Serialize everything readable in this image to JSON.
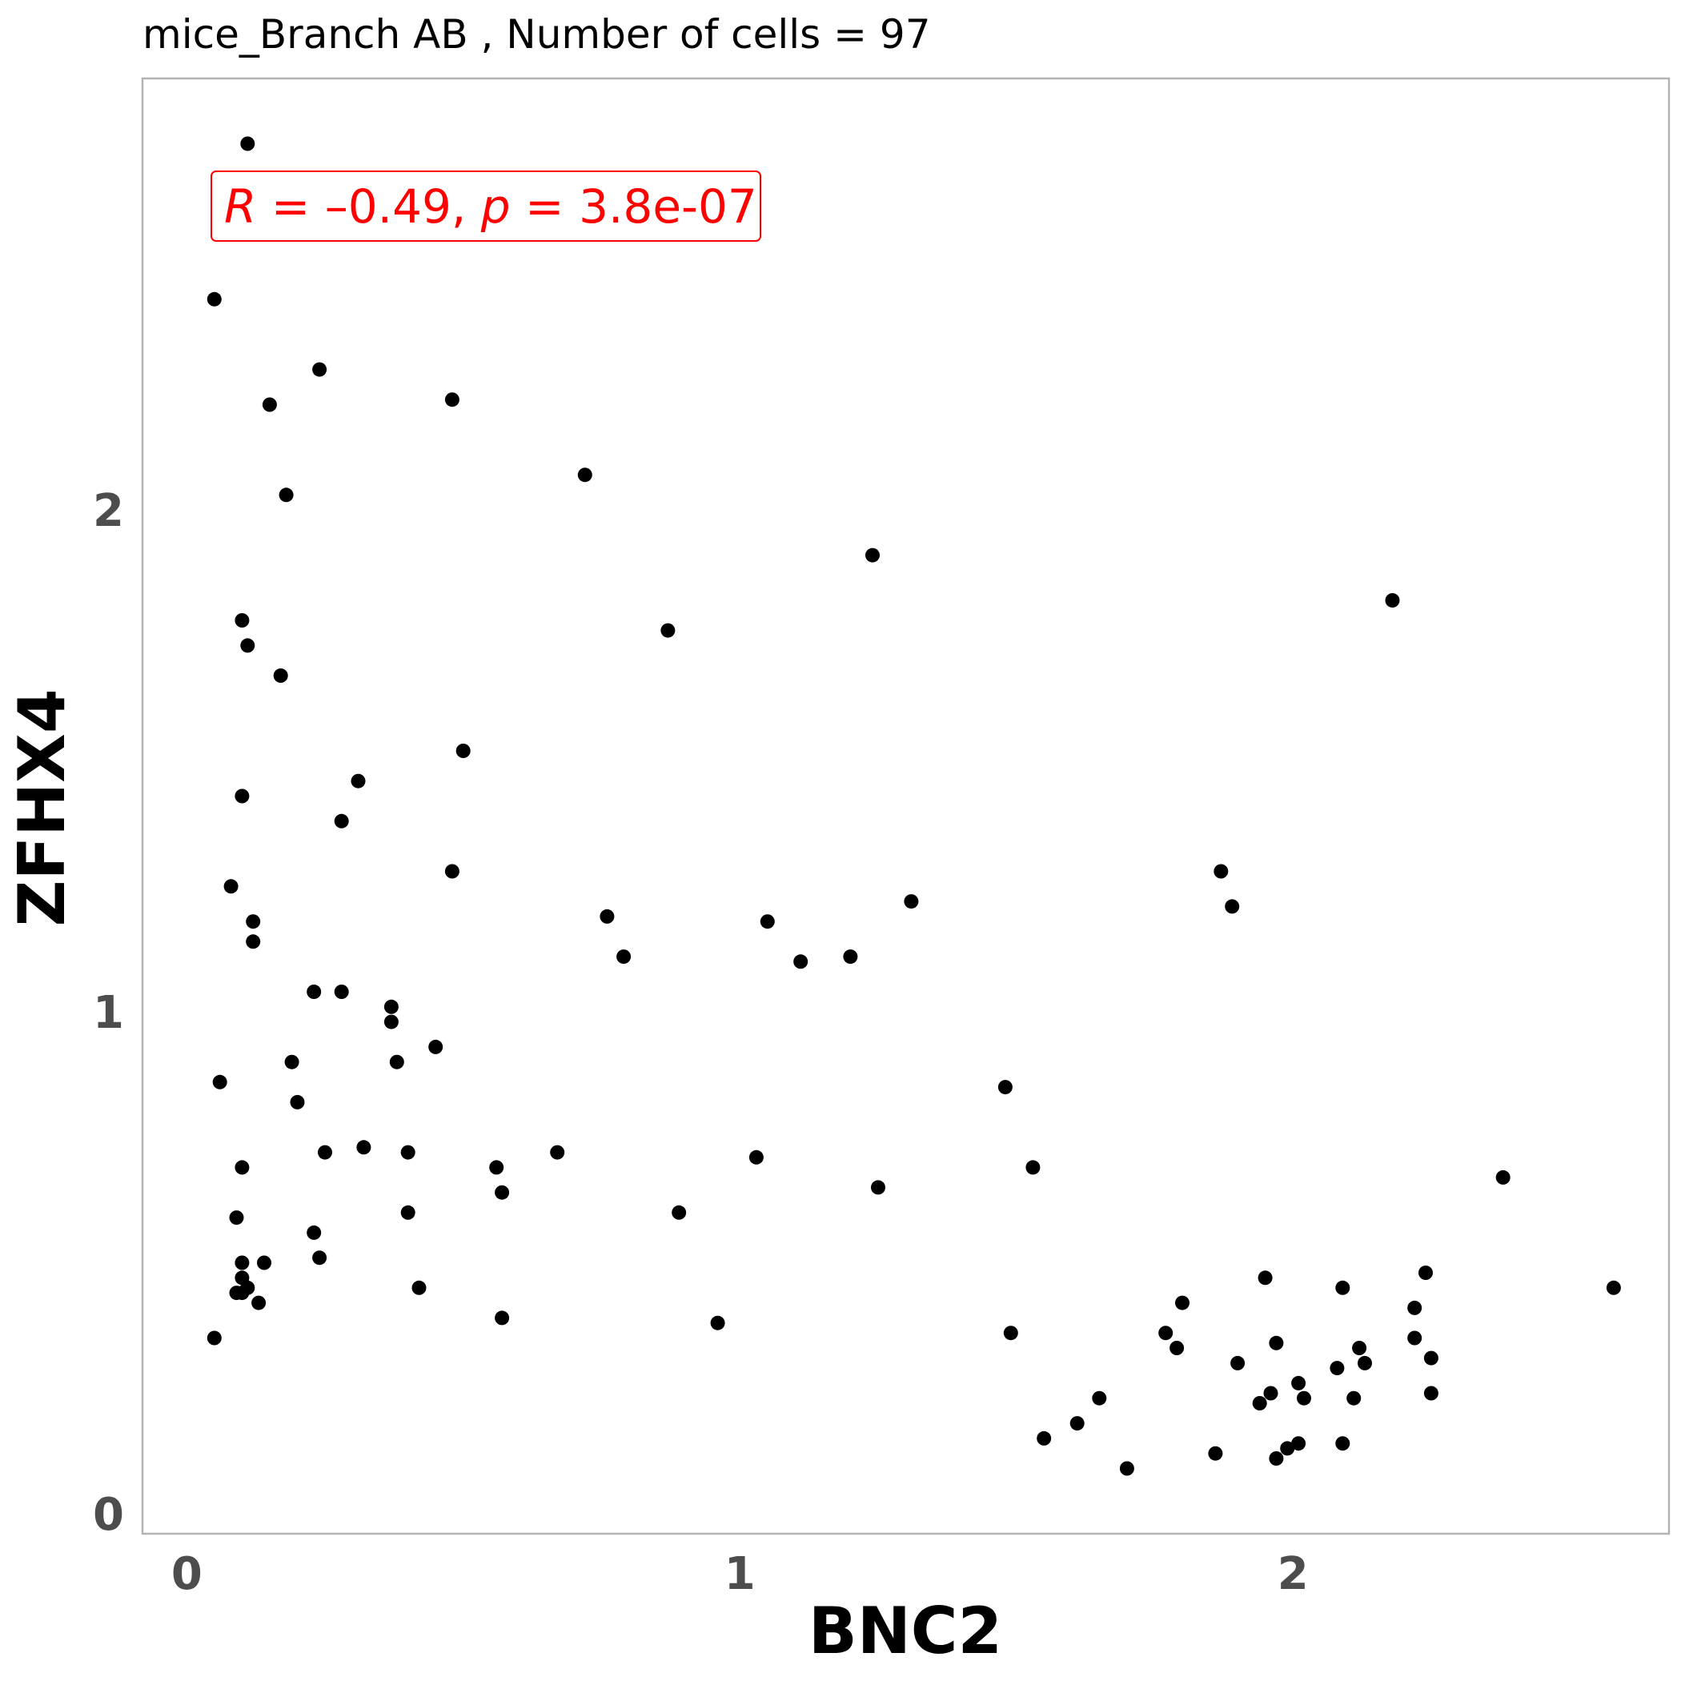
{
  "title": "mice_Branch AB , Number of cells =  97",
  "colors": {
    "point": "#000000",
    "annotation": "#ff0000",
    "panel_border": "#b3b3b3",
    "tick_label": "#4d4d4d"
  },
  "annotation": {
    "r_label": "R",
    "eq1": " = –0.49, ",
    "p_label": "p",
    "eq2": " = 3.8e-07"
  },
  "chart_data": {
    "type": "scatter",
    "title": "mice_Branch AB , Number of cells =  97",
    "xlabel": "BNC2",
    "ylabel": "ZFHX4",
    "xlim": [
      -0.08,
      2.68
    ],
    "ylim": [
      -0.04,
      2.86
    ],
    "xticks": [
      0,
      1,
      2
    ],
    "yticks": [
      0,
      1,
      2
    ],
    "grid": false,
    "annotation": "R = –0.49, p = 3.8e-07",
    "points": [
      [
        0.11,
        2.73
      ],
      [
        0.05,
        2.42
      ],
      [
        0.24,
        2.28
      ],
      [
        0.15,
        2.21
      ],
      [
        0.48,
        2.22
      ],
      [
        0.18,
        2.03
      ],
      [
        0.72,
        2.07
      ],
      [
        1.24,
        1.91
      ],
      [
        0.1,
        1.78
      ],
      [
        0.11,
        1.73
      ],
      [
        0.87,
        1.76
      ],
      [
        0.17,
        1.67
      ],
      [
        2.18,
        1.82
      ],
      [
        0.5,
        1.52
      ],
      [
        0.31,
        1.46
      ],
      [
        0.1,
        1.43
      ],
      [
        0.28,
        1.38
      ],
      [
        0.48,
        1.28
      ],
      [
        0.08,
        1.25
      ],
      [
        0.12,
        1.18
      ],
      [
        0.12,
        1.14
      ],
      [
        0.76,
        1.19
      ],
      [
        0.79,
        1.11
      ],
      [
        1.05,
        1.18
      ],
      [
        1.11,
        1.1
      ],
      [
        1.2,
        1.11
      ],
      [
        1.31,
        1.22
      ],
      [
        1.87,
        1.28
      ],
      [
        1.89,
        1.21
      ],
      [
        0.23,
        1.04
      ],
      [
        0.28,
        1.04
      ],
      [
        0.37,
        1.01
      ],
      [
        0.37,
        0.98
      ],
      [
        0.45,
        0.93
      ],
      [
        0.06,
        0.86
      ],
      [
        0.19,
        0.9
      ],
      [
        0.2,
        0.82
      ],
      [
        0.38,
        0.9
      ],
      [
        1.48,
        0.85
      ],
      [
        0.1,
        0.69
      ],
      [
        0.25,
        0.72
      ],
      [
        0.32,
        0.73
      ],
      [
        0.4,
        0.72
      ],
      [
        0.56,
        0.69
      ],
      [
        0.67,
        0.72
      ],
      [
        1.03,
        0.71
      ],
      [
        1.53,
        0.69
      ],
      [
        0.57,
        0.64
      ],
      [
        0.4,
        0.6
      ],
      [
        0.89,
        0.6
      ],
      [
        1.25,
        0.65
      ],
      [
        2.38,
        0.67
      ],
      [
        0.09,
        0.59
      ],
      [
        0.23,
        0.56
      ],
      [
        0.1,
        0.5
      ],
      [
        0.14,
        0.5
      ],
      [
        0.1,
        0.47
      ],
      [
        0.24,
        0.51
      ],
      [
        0.09,
        0.44
      ],
      [
        0.1,
        0.44
      ],
      [
        0.11,
        0.45
      ],
      [
        0.13,
        0.42
      ],
      [
        0.42,
        0.45
      ],
      [
        0.57,
        0.39
      ],
      [
        0.96,
        0.38
      ],
      [
        0.05,
        0.35
      ],
      [
        1.49,
        0.36
      ],
      [
        1.95,
        0.47
      ],
      [
        2.09,
        0.45
      ],
      [
        2.58,
        0.45
      ],
      [
        2.24,
        0.48
      ],
      [
        1.8,
        0.42
      ],
      [
        1.77,
        0.36
      ],
      [
        1.79,
        0.33
      ],
      [
        2.22,
        0.41
      ],
      [
        2.22,
        0.35
      ],
      [
        1.9,
        0.3
      ],
      [
        1.97,
        0.34
      ],
      [
        2.12,
        0.33
      ],
      [
        2.13,
        0.3
      ],
      [
        2.25,
        0.31
      ],
      [
        2.08,
        0.29
      ],
      [
        2.01,
        0.26
      ],
      [
        1.96,
        0.24
      ],
      [
        1.94,
        0.22
      ],
      [
        2.02,
        0.23
      ],
      [
        2.11,
        0.23
      ],
      [
        2.25,
        0.24
      ],
      [
        1.65,
        0.23
      ],
      [
        1.61,
        0.18
      ],
      [
        1.55,
        0.15
      ],
      [
        1.7,
        0.09
      ],
      [
        1.86,
        0.12
      ],
      [
        1.97,
        0.11
      ],
      [
        1.99,
        0.13
      ],
      [
        2.01,
        0.14
      ],
      [
        2.09,
        0.14
      ]
    ]
  }
}
